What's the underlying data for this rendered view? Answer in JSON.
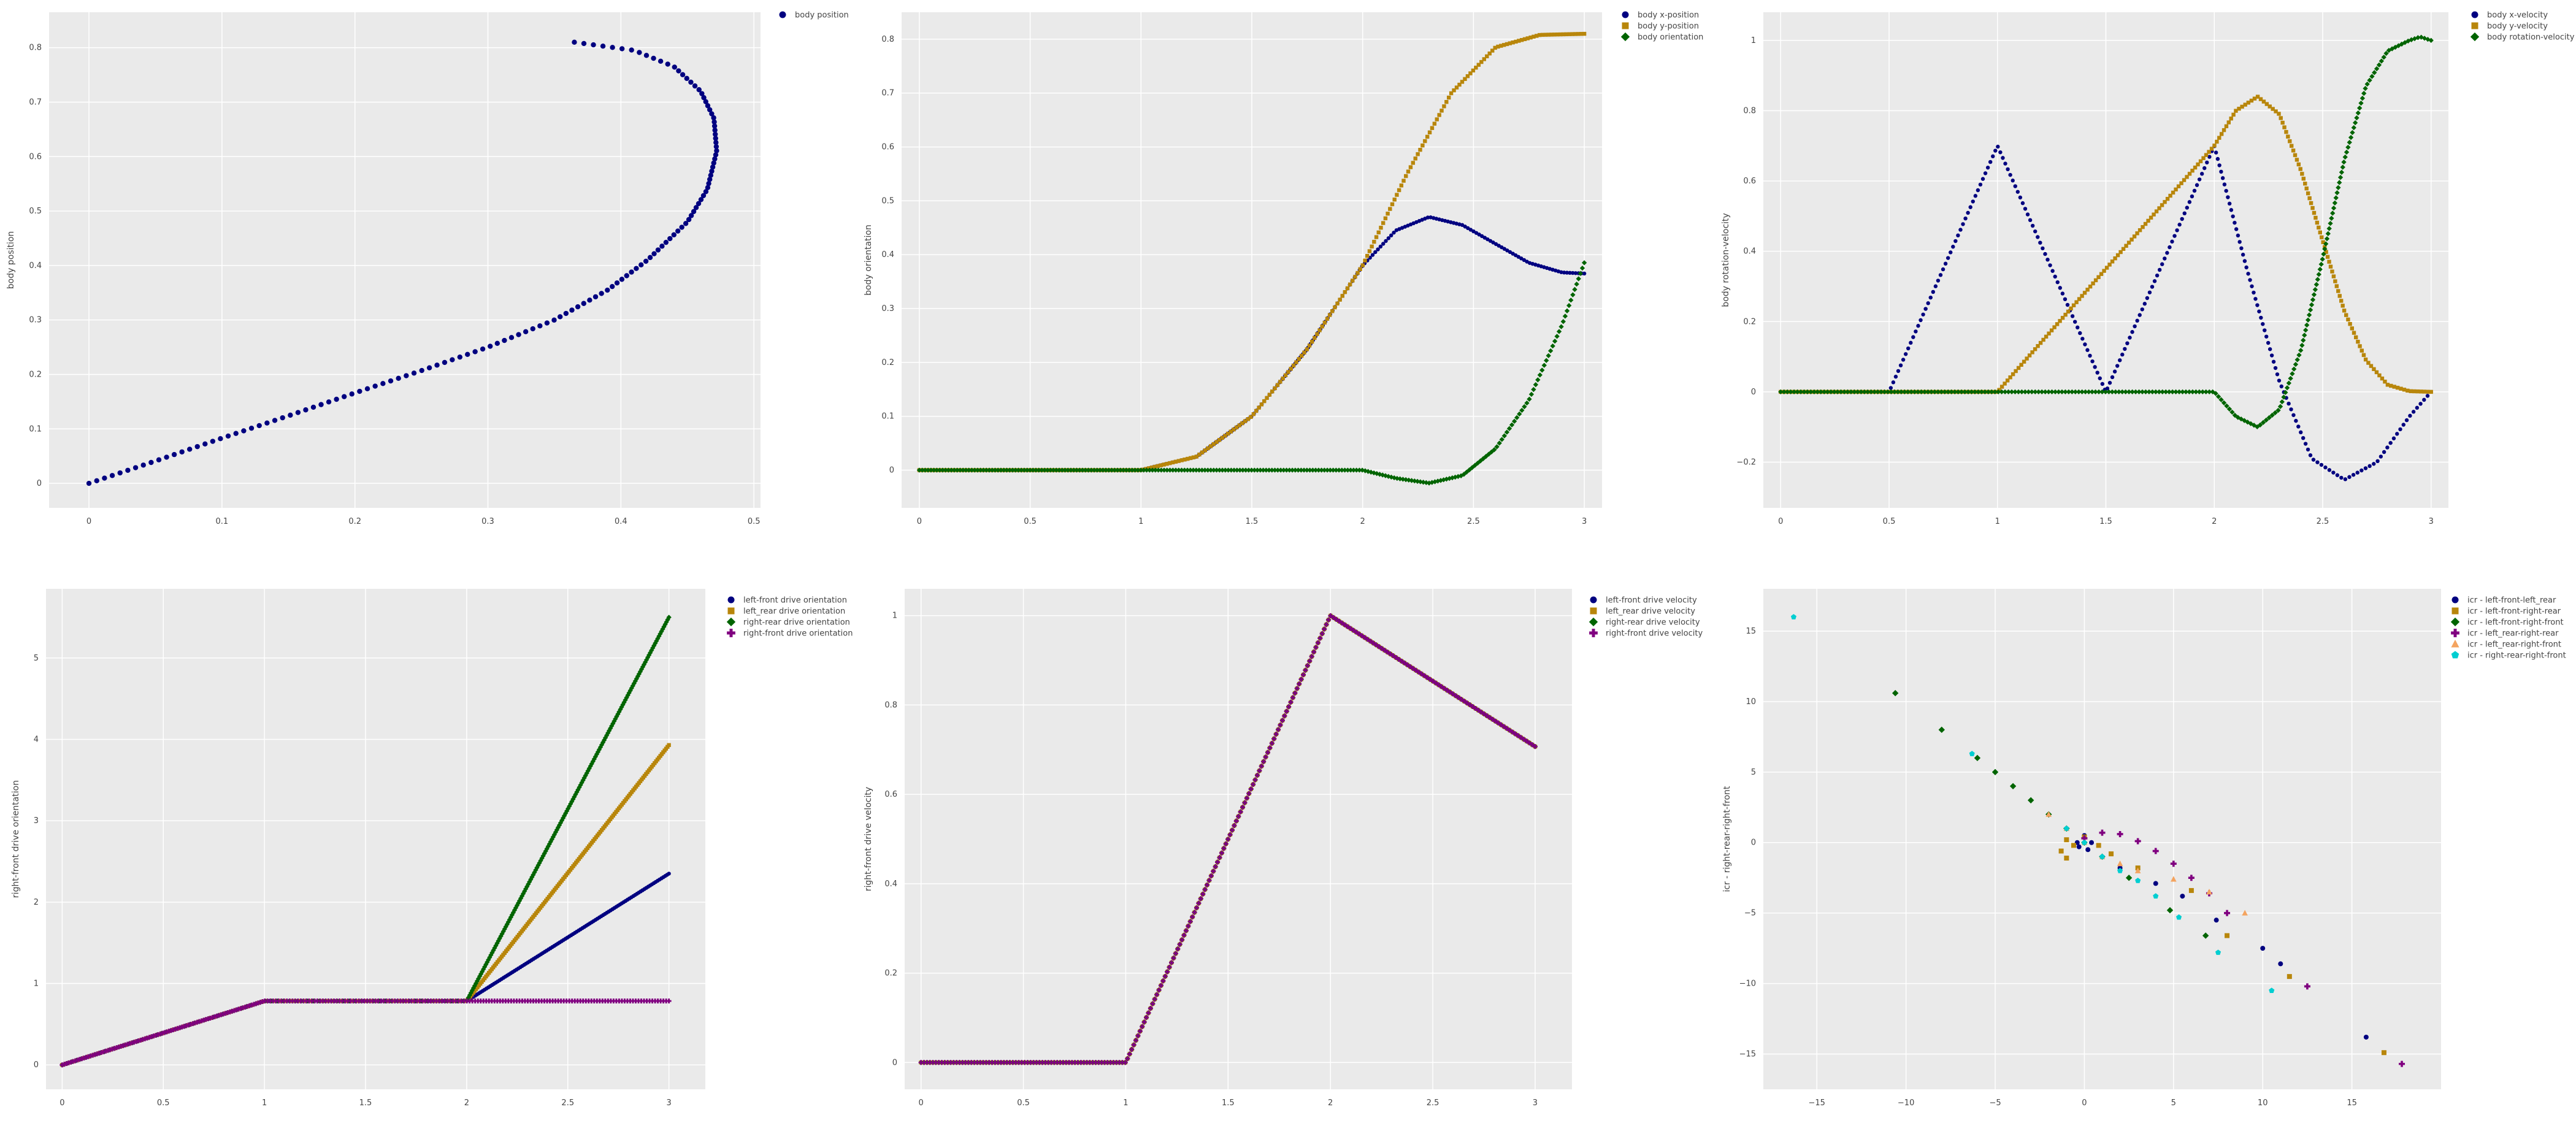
{
  "chart_data": [
    {
      "type": "scatter",
      "xlabel": "",
      "ylabel": "body position",
      "xlim": [
        -0.03,
        0.505
      ],
      "ylim": [
        -0.045,
        0.865
      ],
      "xticks": [
        0,
        0.1,
        0.2,
        0.3,
        0.4,
        0.5
      ],
      "yticks": [
        0,
        0.1,
        0.2,
        0.3,
        0.4,
        0.5,
        0.6,
        0.7,
        0.8
      ],
      "grid": true,
      "legend_position": "top-right (outside)",
      "series": [
        {
          "name": "body position",
          "color": "#000080",
          "marker": "circle",
          "x": [
            0,
            0.05,
            0.1,
            0.15,
            0.2,
            0.25,
            0.3,
            0.35,
            0.39,
            0.42,
            0.45,
            0.465,
            0.472,
            0.47,
            0.46,
            0.44,
            0.41,
            0.365
          ],
          "y": [
            0,
            0.041,
            0.083,
            0.124,
            0.166,
            0.207,
            0.25,
            0.3,
            0.355,
            0.41,
            0.48,
            0.54,
            0.61,
            0.67,
            0.72,
            0.765,
            0.795,
            0.81
          ]
        }
      ]
    },
    {
      "type": "scatter",
      "xlabel": "",
      "ylabel": "body orientation",
      "xlim": [
        -0.08,
        3.08
      ],
      "ylim": [
        -0.07,
        0.85
      ],
      "xticks": [
        0,
        0.5,
        1,
        1.5,
        2,
        2.5,
        3
      ],
      "yticks": [
        0,
        0.1,
        0.2,
        0.3,
        0.4,
        0.5,
        0.6,
        0.7,
        0.8
      ],
      "grid": true,
      "legend_position": "top-right (outside)",
      "series": [
        {
          "name": "body x-position",
          "color": "#000080",
          "marker": "circle",
          "x": [
            0,
            0.5,
            1,
            1.25,
            1.5,
            1.75,
            2,
            2.15,
            2.3,
            2.45,
            2.6,
            2.75,
            2.9,
            3
          ],
          "y": [
            0,
            0,
            0,
            0.025,
            0.1,
            0.225,
            0.38,
            0.445,
            0.47,
            0.455,
            0.42,
            0.385,
            0.367,
            0.365
          ]
        },
        {
          "name": "body y-position",
          "color": "#B8860B",
          "marker": "square",
          "x": [
            0,
            0.5,
            1,
            1.25,
            1.5,
            1.75,
            2,
            2.2,
            2.4,
            2.6,
            2.8,
            3
          ],
          "y": [
            0,
            0,
            0,
            0.025,
            0.1,
            0.225,
            0.38,
            0.55,
            0.7,
            0.785,
            0.808,
            0.81
          ]
        },
        {
          "name": "body orientation",
          "color": "#006400",
          "marker": "diamond",
          "x": [
            0,
            0.5,
            1,
            1.5,
            2,
            2.15,
            2.3,
            2.45,
            2.6,
            2.75,
            2.9,
            3
          ],
          "y": [
            0,
            0,
            0,
            0,
            0,
            -0.015,
            -0.024,
            -0.01,
            0.04,
            0.13,
            0.27,
            0.385
          ]
        }
      ]
    },
    {
      "type": "scatter",
      "xlabel": "",
      "ylabel": "body rotation-velocity",
      "xlim": [
        -0.08,
        3.08
      ],
      "ylim": [
        -0.33,
        1.08
      ],
      "xticks": [
        0,
        0.5,
        1,
        1.5,
        2,
        2.5,
        3
      ],
      "yticks": [
        -0.2,
        0,
        0.2,
        0.4,
        0.6,
        0.8,
        1
      ],
      "grid": true,
      "legend_position": "top-right (outside)",
      "series": [
        {
          "name": "body x-velocity",
          "color": "#000080",
          "marker": "circle",
          "x": [
            0,
            0.5,
            1,
            1.5,
            2,
            2.15,
            2.3,
            2.45,
            2.6,
            2.75,
            2.9,
            3
          ],
          "y": [
            0,
            0,
            0.7,
            0,
            0.7,
            0.35,
            0.03,
            -0.19,
            -0.25,
            -0.2,
            -0.07,
            0
          ]
        },
        {
          "name": "body y-velocity",
          "color": "#B8860B",
          "marker": "square",
          "x": [
            0,
            0.5,
            1,
            1.5,
            2,
            2.1,
            2.2,
            2.3,
            2.4,
            2.5,
            2.6,
            2.7,
            2.8,
            2.9,
            3
          ],
          "y": [
            0,
            0,
            0,
            0.35,
            0.7,
            0.8,
            0.84,
            0.79,
            0.63,
            0.43,
            0.23,
            0.09,
            0.02,
            0.002,
            0
          ]
        },
        {
          "name": "body rotation-velocity",
          "color": "#006400",
          "marker": "diamond",
          "x": [
            0,
            0.5,
            1,
            1.5,
            2,
            2.1,
            2.2,
            2.3,
            2.4,
            2.5,
            2.6,
            2.7,
            2.8,
            2.9,
            2.95,
            3
          ],
          "y": [
            0,
            0,
            0,
            0,
            0,
            -0.07,
            -0.1,
            -0.05,
            0.12,
            0.38,
            0.66,
            0.87,
            0.97,
            1.0,
            1.01,
            1.0
          ]
        }
      ]
    },
    {
      "type": "scatter",
      "xlabel": "",
      "ylabel": "right-front drive orientation",
      "xlim": [
        -0.08,
        3.18
      ],
      "ylim": [
        -0.3,
        5.85
      ],
      "xticks": [
        0,
        0.5,
        1,
        1.5,
        2,
        2.5,
        3
      ],
      "yticks": [
        0,
        1,
        2,
        3,
        4,
        5
      ],
      "grid": true,
      "legend_position": "top-right (outside)",
      "series": [
        {
          "name": "left-front drive orientation",
          "color": "#000080",
          "marker": "circle",
          "x": [
            0,
            1,
            2,
            3
          ],
          "y": [
            0,
            0.785,
            0.785,
            2.35
          ]
        },
        {
          "name": "left_rear drive orientation",
          "color": "#B8860B",
          "marker": "square",
          "x": [
            0,
            1,
            2,
            3
          ],
          "y": [
            0,
            0.785,
            0.785,
            3.93
          ]
        },
        {
          "name": "right-rear drive orientation",
          "color": "#006400",
          "marker": "diamond",
          "x": [
            0,
            1,
            2,
            3
          ],
          "y": [
            0,
            0.785,
            0.785,
            5.5
          ]
        },
        {
          "name": "right-front drive orientation",
          "color": "#800080",
          "marker": "cross",
          "x": [
            0,
            1,
            2,
            3
          ],
          "y": [
            0,
            0.785,
            0.785,
            0.785
          ]
        }
      ]
    },
    {
      "type": "scatter",
      "xlabel": "",
      "ylabel": "right-front drive velocity",
      "xlim": [
        -0.08,
        3.18
      ],
      "ylim": [
        -0.06,
        1.06
      ],
      "xticks": [
        0,
        0.5,
        1,
        1.5,
        2,
        2.5,
        3
      ],
      "yticks": [
        0,
        0.2,
        0.4,
        0.6,
        0.8,
        1
      ],
      "grid": true,
      "legend_position": "top-right (outside)",
      "series": [
        {
          "name": "left-front drive velocity",
          "color": "#000080",
          "marker": "circle",
          "x": [
            0,
            1,
            2,
            3
          ],
          "y": [
            0,
            0,
            1,
            0.707
          ]
        },
        {
          "name": "left_rear drive velocity",
          "color": "#B8860B",
          "marker": "square",
          "x": [
            0,
            1,
            2,
            3
          ],
          "y": [
            0,
            0,
            1,
            0.707
          ]
        },
        {
          "name": "right-rear drive velocity",
          "color": "#006400",
          "marker": "diamond",
          "x": [
            0,
            1,
            2,
            3
          ],
          "y": [
            0,
            0,
            1,
            0.707
          ]
        },
        {
          "name": "right-front drive velocity",
          "color": "#800080",
          "marker": "cross",
          "x": [
            0,
            1,
            2,
            3
          ],
          "y": [
            0,
            0,
            1,
            0.707
          ]
        }
      ]
    },
    {
      "type": "scatter",
      "xlabel": "",
      "ylabel": "icr - right-rear-right-front",
      "xlim": [
        -18,
        20
      ],
      "ylim": [
        -17.5,
        18
      ],
      "xticks": [
        -15,
        -10,
        -5,
        0,
        5,
        10,
        15
      ],
      "yticks": [
        -15,
        -10,
        -5,
        0,
        5,
        10,
        15
      ],
      "grid": true,
      "legend_position": "top-right (outside)",
      "series": [
        {
          "name": "icr - left-front-left_rear",
          "color": "#000080",
          "marker": "circle",
          "x": [
            -0.4,
            0,
            0.4,
            0.2,
            -0.3,
            2,
            4,
            5.5,
            7.4,
            10,
            11,
            15.8
          ],
          "y": [
            0,
            0.5,
            0,
            -0.5,
            -0.3,
            -1.8,
            -2.9,
            -3.8,
            -5.5,
            -7.5,
            -8.6,
            -13.8
          ]
        },
        {
          "name": "icr - left-front-right-rear",
          "color": "#B8860B",
          "marker": "square",
          "x": [
            -1,
            -1.3,
            -1,
            -0.6,
            0,
            0.8,
            1.5,
            3,
            6,
            8,
            11.5,
            16.8
          ],
          "y": [
            0.2,
            -0.6,
            -1.1,
            -0.2,
            0.4,
            -0.2,
            -0.8,
            -1.8,
            -3.4,
            -6.6,
            -9.5,
            -14.9
          ]
        },
        {
          "name": "icr - left-front-right-front",
          "color": "#006400",
          "marker": "diamond",
          "x": [
            -10.6,
            -8,
            -6,
            -5,
            -4,
            -3,
            -2,
            -1,
            0,
            1,
            2.5,
            4.8,
            6.8
          ],
          "y": [
            10.6,
            8,
            6,
            5,
            4,
            3,
            2,
            1,
            0,
            -1,
            -2.5,
            -4.8,
            -6.6
          ]
        },
        {
          "name": "icr - left_rear-right-rear",
          "color": "#800080",
          "marker": "cross",
          "x": [
            0,
            1,
            2,
            3,
            4,
            5,
            6,
            7,
            8,
            12.5,
            17.8
          ],
          "y": [
            0.3,
            0.7,
            0.6,
            0.1,
            -0.6,
            -1.5,
            -2.5,
            -3.6,
            -5,
            -10.2,
            -15.7
          ]
        },
        {
          "name": "icr - left_rear-right-front",
          "color": "#F4A460",
          "marker": "triangle-up",
          "x": [
            -2,
            -1,
            0,
            1,
            2,
            3,
            5,
            7,
            9
          ],
          "y": [
            2,
            1,
            0,
            -1,
            -1.5,
            -2,
            -2.6,
            -3.5,
            -5
          ]
        },
        {
          "name": "icr - right-rear-right-front",
          "color": "#00CED1",
          "marker": "pentagon",
          "x": [
            -16.3,
            -6.3,
            -1,
            0,
            1,
            2,
            3,
            4,
            5.3,
            7.5,
            10.5
          ],
          "y": [
            16,
            6.3,
            1,
            0,
            -1,
            -2,
            -2.7,
            -3.8,
            -5.3,
            -7.8,
            -10.5
          ]
        }
      ]
    }
  ]
}
